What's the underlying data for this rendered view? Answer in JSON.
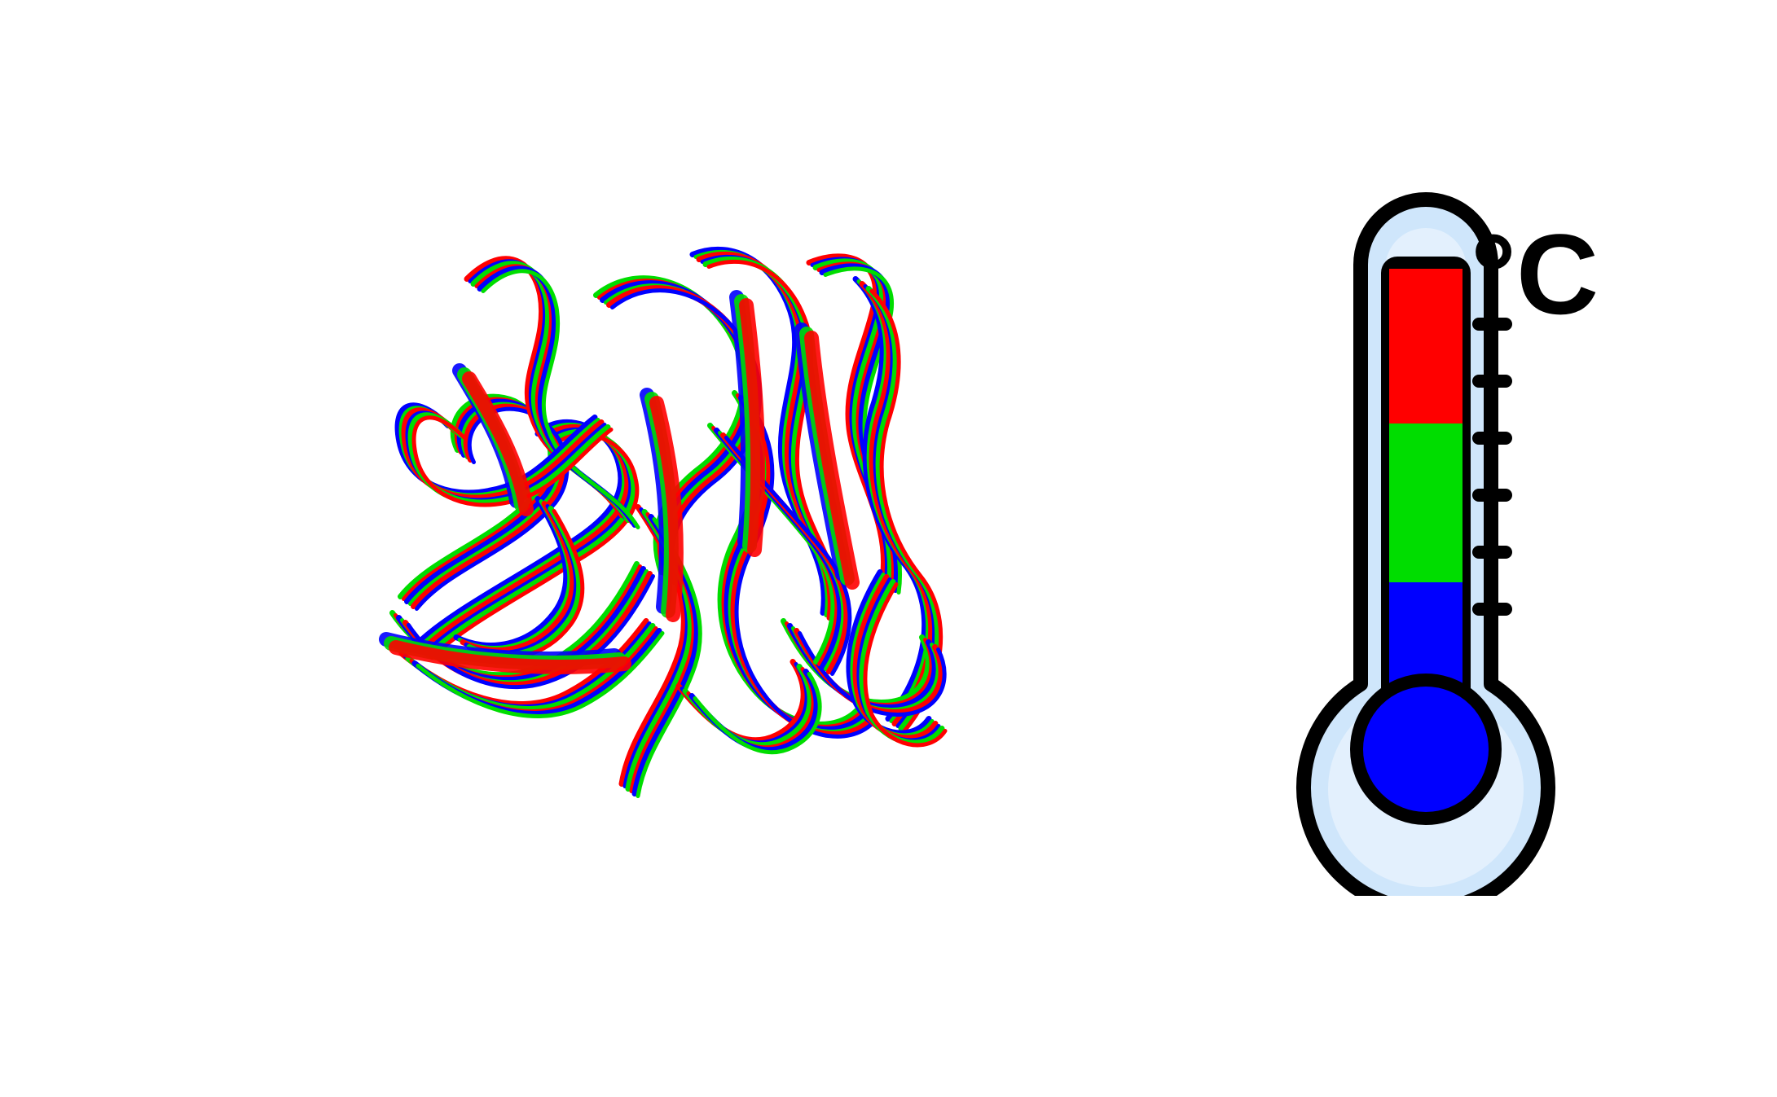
{
  "figure": {
    "unit_label": "°C",
    "colors": {
      "hot": "#ff0000",
      "warm": "#00dd00",
      "cold": "#0000ff",
      "outline": "#000000",
      "glass_fill": "#cfe6fb",
      "glass_inner": "#e3f0fd",
      "background": "#ffffff"
    },
    "icons": {
      "protein": "protein-ensemble-cartoon",
      "thermometer": "thermometer-icon"
    }
  }
}
